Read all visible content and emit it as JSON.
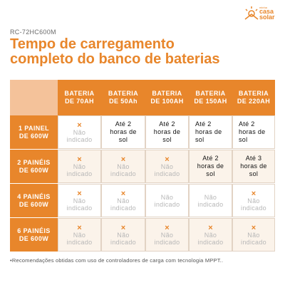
{
  "model": "RC-72HC600M",
  "title_line1": "Tempo de carregamento",
  "title_line2": "completo do banco de baterias",
  "logo": {
    "small": "minha",
    "word1": "casa",
    "word2": "solar"
  },
  "table": {
    "headers": [
      {
        "line1": "BATERIA",
        "line2": "DE 70AH"
      },
      {
        "line1": "BATERIA",
        "line2": "DE 50Ah"
      },
      {
        "line1": "BATERIA",
        "line2": "DE 100AH"
      },
      {
        "line1": "BATERIA",
        "line2": "DE 150AH"
      },
      {
        "line1": "BATERIA",
        "line2": "DE 220AH"
      }
    ],
    "rows": [
      {
        "line1": "1 PAINEL",
        "line2": "DE 600W",
        "cells": [
          {
            "type": "na",
            "x": "×",
            "l1": "Não",
            "l2": "indicado"
          },
          {
            "type": "val",
            "l1": "Até 2",
            "l2": "horas de",
            "l3": "sol"
          },
          {
            "type": "val",
            "l1": "Até 2",
            "l2": "horas de",
            "l3": "sol"
          },
          {
            "type": "val",
            "l1": "Até 2",
            "l2": "horas de",
            "l3": "sol",
            "align": "left"
          },
          {
            "type": "val",
            "l1": "Até 2",
            "l2": "horas de",
            "l3": "sol",
            "align": "left"
          }
        ]
      },
      {
        "line1": "2 PAINÉIS",
        "line2": "DE 600W",
        "cells": [
          {
            "type": "na",
            "x": "×",
            "l1": "Não",
            "l2": "indicado"
          },
          {
            "type": "na",
            "x": "×",
            "l1": "Não",
            "l2": "indicado"
          },
          {
            "type": "na",
            "x": "×",
            "l1": "Não",
            "l2": "indicado"
          },
          {
            "type": "val",
            "l1": "Até 2",
            "l2": "horas de",
            "l3": "sol"
          },
          {
            "type": "val",
            "l1": "Até 3",
            "l2": "horas de",
            "l3": "sol"
          }
        ]
      },
      {
        "line1": "4 PAINÉIS",
        "line2": "DE 600W",
        "cells": [
          {
            "type": "na",
            "x": "×",
            "l1": "Não",
            "l2": "indicado"
          },
          {
            "type": "na",
            "x": "×",
            "l1": "Não",
            "l2": "indicado"
          },
          {
            "type": "na",
            "x": "",
            "l1": "Não",
            "l2": "indicado"
          },
          {
            "type": "na",
            "x": "",
            "l1": "Não",
            "l2": "indicado"
          },
          {
            "type": "na",
            "x": "×",
            "l1": "Não",
            "l2": "indicado"
          }
        ]
      },
      {
        "line1": "6 PAINÉIS",
        "line2": "DE 600W",
        "cells": [
          {
            "type": "na",
            "x": "×",
            "l1": "Não",
            "l2": "indicado"
          },
          {
            "type": "na",
            "x": "×",
            "l1": "Não",
            "l2": "indicado"
          },
          {
            "type": "na",
            "x": "×",
            "l1": "Não",
            "l2": "indicado"
          },
          {
            "type": "na",
            "x": "×",
            "l1": "Não",
            "l2": "indicado"
          },
          {
            "type": "na",
            "x": "×",
            "l1": "Não",
            "l2": "indicado"
          }
        ]
      }
    ]
  },
  "footnote": "•Recomendações obtidas com uso de controladores de carga com tecnologia MPPT..",
  "colors": {
    "accent": "#e8862b",
    "corner": "#f4c29a",
    "na_text": "#b7b7b7"
  }
}
